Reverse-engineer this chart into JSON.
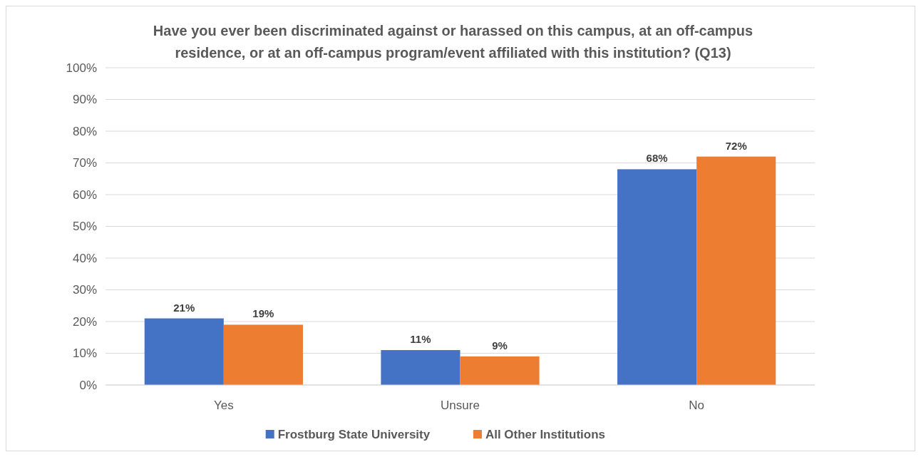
{
  "chart_data": {
    "type": "bar",
    "title": "Have you ever been discriminated against or harassed on this campus, at an off-campus residence, or at an off-campus program/event affiliated with this institution? (Q13)",
    "categories": [
      "Yes",
      "Unsure",
      "No"
    ],
    "series": [
      {
        "name": "Frostburg State University",
        "color": "#4472c4",
        "values": [
          21,
          11,
          68
        ],
        "value_labels": [
          "21%",
          "11%",
          "68%"
        ]
      },
      {
        "name": "All Other Institutions",
        "color": "#ed7d31",
        "values": [
          19,
          9,
          72
        ],
        "value_labels": [
          "19%",
          "9%",
          "72%"
        ]
      }
    ],
    "ylim": [
      0,
      100
    ],
    "yticks": [
      {
        "value": 0,
        "label": "0%"
      },
      {
        "value": 10,
        "label": "10%"
      },
      {
        "value": 20,
        "label": "20%"
      },
      {
        "value": 30,
        "label": "30%"
      },
      {
        "value": 40,
        "label": "40%"
      },
      {
        "value": 50,
        "label": "50%"
      },
      {
        "value": 60,
        "label": "60%"
      },
      {
        "value": 70,
        "label": "70%"
      },
      {
        "value": 80,
        "label": "80%"
      },
      {
        "value": 90,
        "label": "90%"
      },
      {
        "value": 100,
        "label": "100%"
      }
    ],
    "grid": "y",
    "legend": "bottom"
  }
}
